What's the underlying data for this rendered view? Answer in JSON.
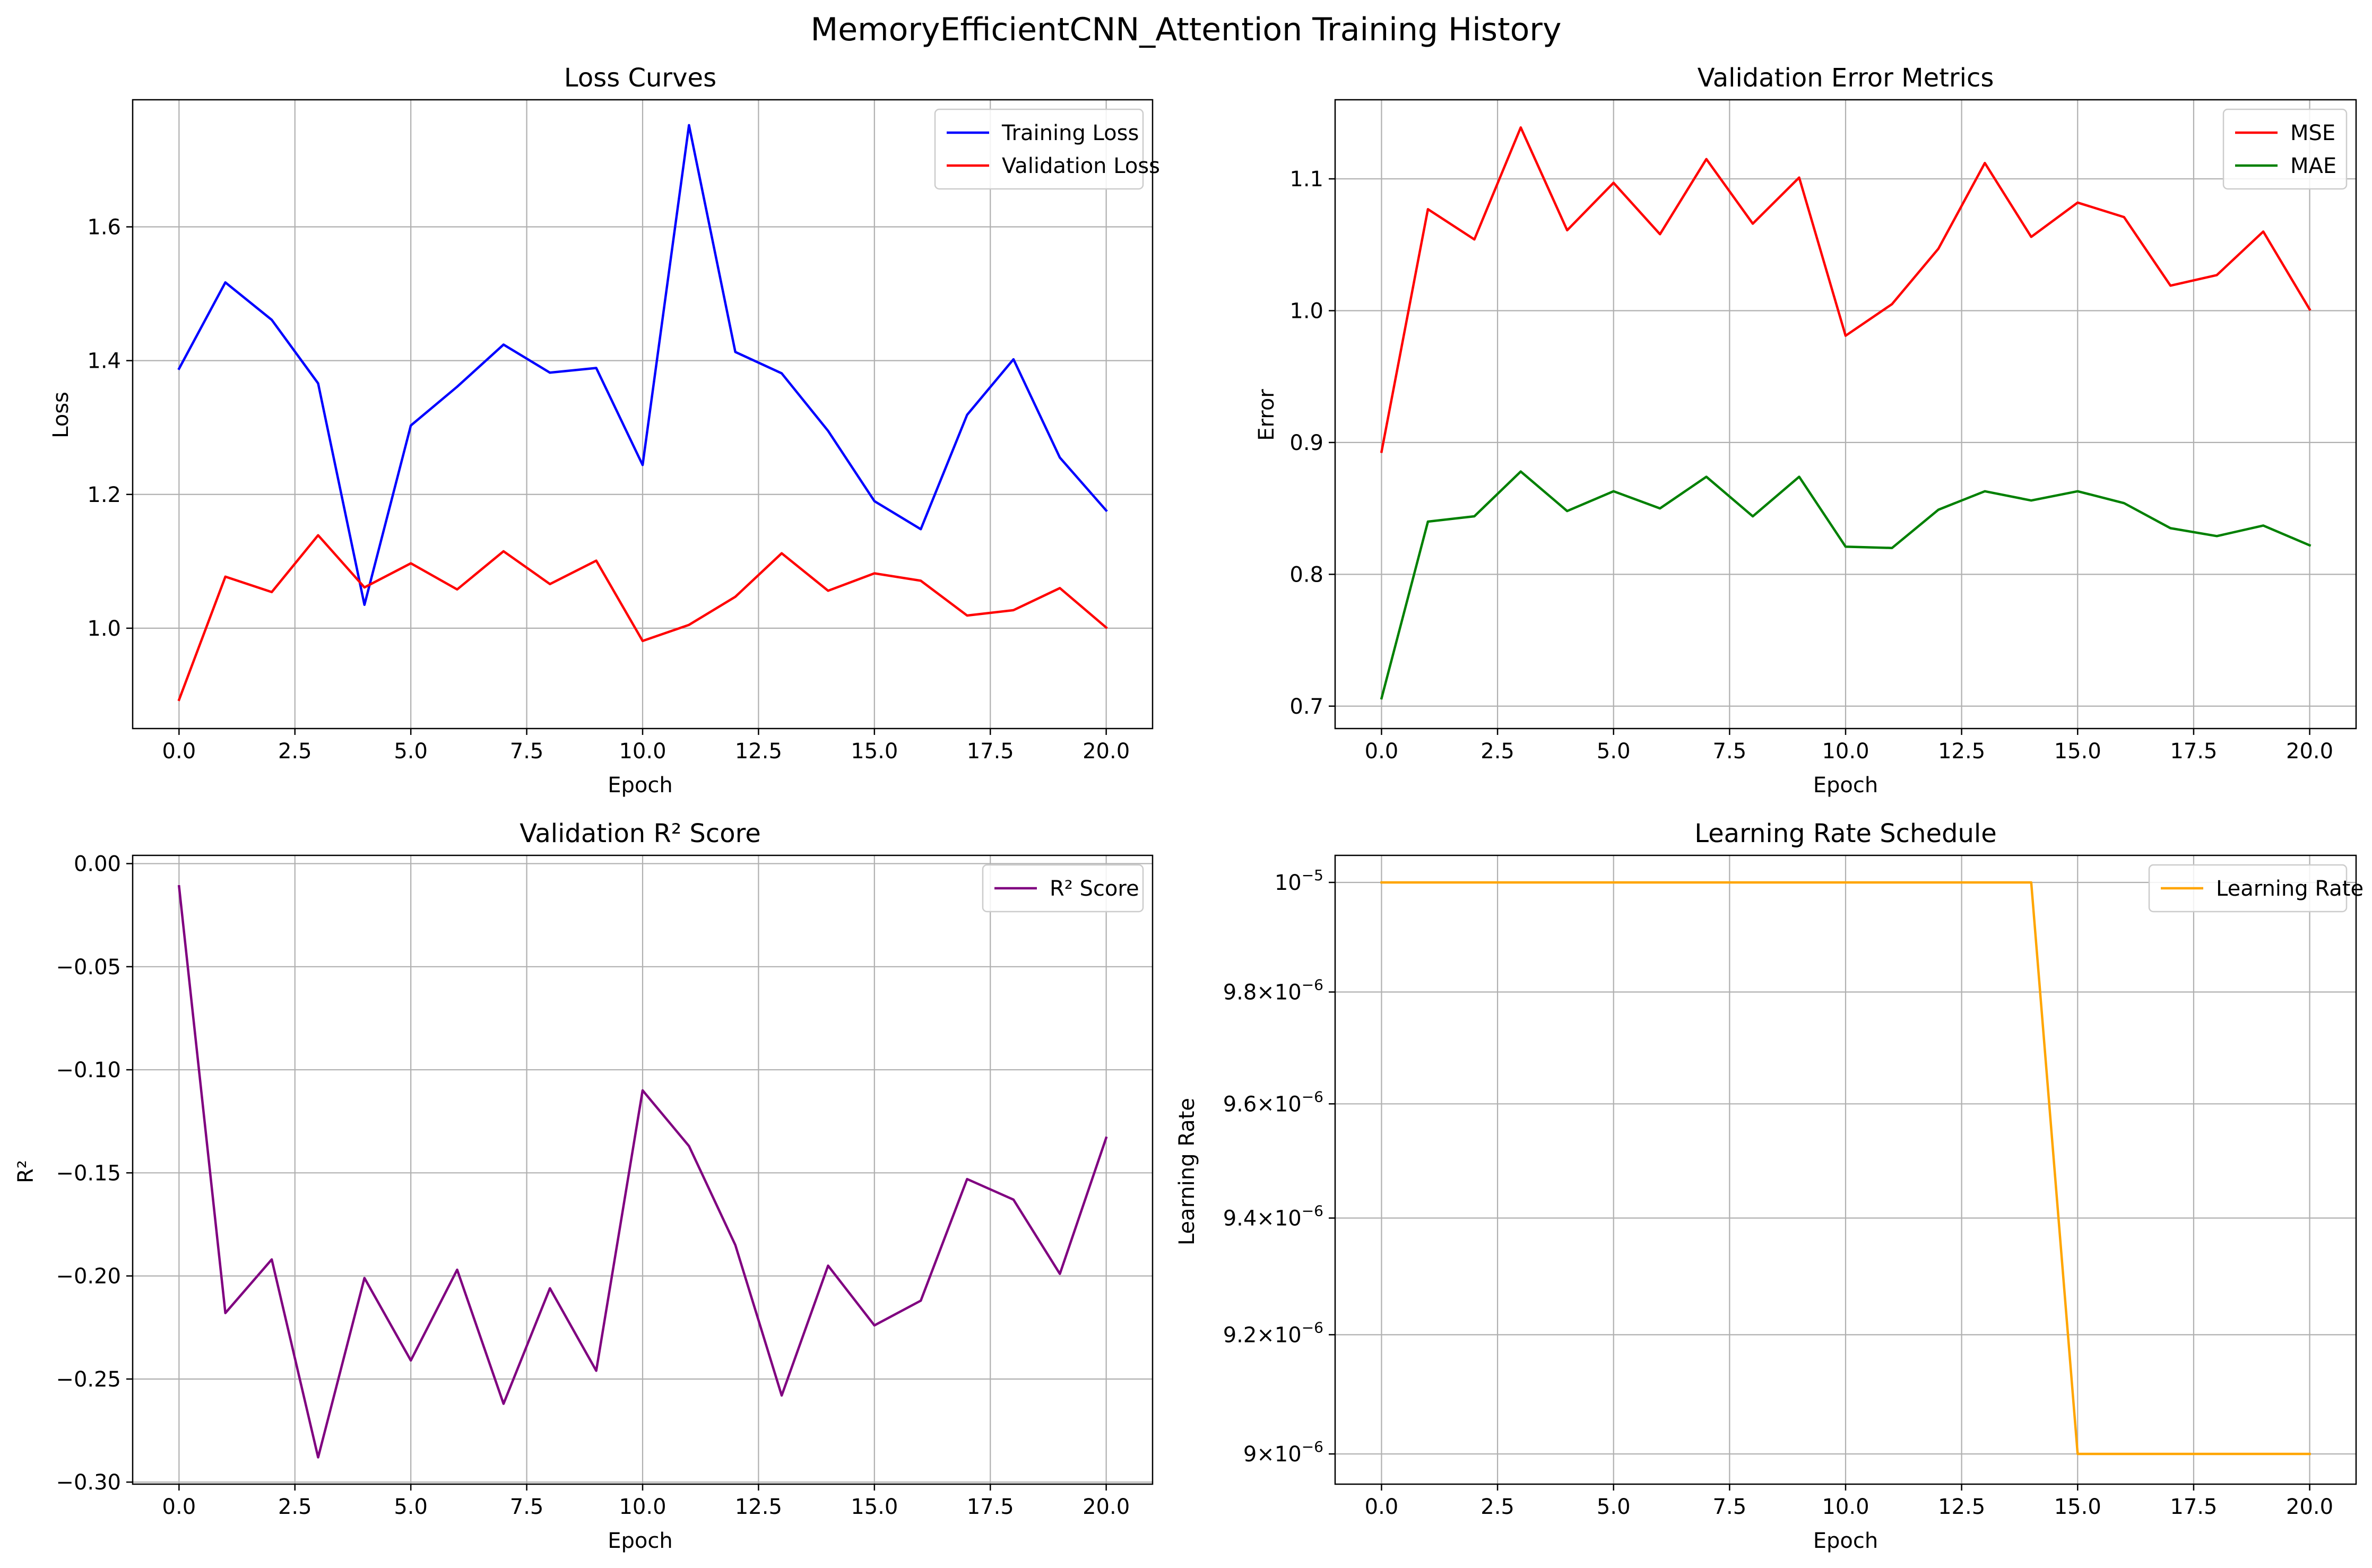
{
  "figure": {
    "title": "MemoryEfficientCNN_Attention Training History"
  },
  "chart_data": [
    {
      "type": "line",
      "title": "Loss Curves",
      "xlabel": "Epoch",
      "ylabel": "Loss",
      "xlim": [
        -1,
        21
      ],
      "ylim": [
        0.85,
        1.79
      ],
      "xticks": [
        0,
        2.5,
        5,
        7.5,
        10,
        12.5,
        15,
        17.5,
        20
      ],
      "xtick_labels": [
        "0.0",
        "2.5",
        "5.0",
        "7.5",
        "10.0",
        "12.5",
        "15.0",
        "17.5",
        "20.0"
      ],
      "yticks": [
        1.0,
        1.2,
        1.4,
        1.6
      ],
      "ytick_labels": [
        "1.0",
        "1.2",
        "1.4",
        "1.6"
      ],
      "grid": true,
      "legend_position": "top-right",
      "x": [
        0,
        1,
        2,
        3,
        4,
        5,
        6,
        7,
        8,
        9,
        10,
        11,
        12,
        13,
        14,
        15,
        16,
        17,
        18,
        19,
        20
      ],
      "series": [
        {
          "name": "Training Loss",
          "color": "#0000ff",
          "values": [
            1.388,
            1.517,
            1.461,
            1.366,
            1.035,
            1.303,
            1.361,
            1.424,
            1.382,
            1.389,
            1.244,
            1.752,
            1.413,
            1.381,
            1.295,
            1.19,
            1.148,
            1.319,
            1.402,
            1.255,
            1.176
          ]
        },
        {
          "name": "Validation Loss",
          "color": "#ff0000",
          "values": [
            0.893,
            1.077,
            1.054,
            1.139,
            1.061,
            1.097,
            1.058,
            1.115,
            1.066,
            1.101,
            0.981,
            1.005,
            1.047,
            1.112,
            1.056,
            1.082,
            1.071,
            1.019,
            1.027,
            1.06,
            1.001
          ]
        }
      ]
    },
    {
      "type": "line",
      "title": "Validation Error Metrics",
      "xlabel": "Epoch",
      "ylabel": "Error",
      "xlim": [
        -1,
        21
      ],
      "ylim": [
        0.683,
        1.16
      ],
      "xticks": [
        0,
        2.5,
        5,
        7.5,
        10,
        12.5,
        15,
        17.5,
        20
      ],
      "xtick_labels": [
        "0.0",
        "2.5",
        "5.0",
        "7.5",
        "10.0",
        "12.5",
        "15.0",
        "17.5",
        "20.0"
      ],
      "yticks": [
        0.7,
        0.8,
        0.9,
        1.0,
        1.1
      ],
      "ytick_labels": [
        "0.7",
        "0.8",
        "0.9",
        "1.0",
        "1.1"
      ],
      "grid": true,
      "legend_position": "top-right",
      "x": [
        0,
        1,
        2,
        3,
        4,
        5,
        6,
        7,
        8,
        9,
        10,
        11,
        12,
        13,
        14,
        15,
        16,
        17,
        18,
        19,
        20
      ],
      "series": [
        {
          "name": "MSE",
          "color": "#ff0000",
          "values": [
            0.893,
            1.077,
            1.054,
            1.139,
            1.061,
            1.097,
            1.058,
            1.115,
            1.066,
            1.101,
            0.981,
            1.005,
            1.047,
            1.112,
            1.056,
            1.082,
            1.071,
            1.019,
            1.027,
            1.06,
            1.001
          ]
        },
        {
          "name": "MAE",
          "color": "#008000",
          "values": [
            0.706,
            0.84,
            0.844,
            0.878,
            0.848,
            0.863,
            0.85,
            0.874,
            0.844,
            0.874,
            0.821,
            0.82,
            0.849,
            0.863,
            0.856,
            0.863,
            0.854,
            0.835,
            0.829,
            0.837,
            0.822
          ]
        }
      ]
    },
    {
      "type": "line",
      "title": "Validation R² Score",
      "xlabel": "Epoch",
      "ylabel": "R²",
      "xlim": [
        -1,
        21
      ],
      "ylim": [
        -0.301,
        0.004
      ],
      "xticks": [
        0,
        2.5,
        5,
        7.5,
        10,
        12.5,
        15,
        17.5,
        20
      ],
      "xtick_labels": [
        "0.0",
        "2.5",
        "5.0",
        "7.5",
        "10.0",
        "12.5",
        "15.0",
        "17.5",
        "20.0"
      ],
      "yticks": [
        0.0,
        -0.05,
        -0.1,
        -0.15,
        -0.2,
        -0.25,
        -0.3
      ],
      "ytick_labels": [
        "0.00",
        "−0.05",
        "−0.10",
        "−0.15",
        "−0.20",
        "−0.25",
        "−0.30"
      ],
      "grid": true,
      "legend_position": "top-right",
      "x": [
        0,
        1,
        2,
        3,
        4,
        5,
        6,
        7,
        8,
        9,
        10,
        11,
        12,
        13,
        14,
        15,
        16,
        17,
        18,
        19,
        20
      ],
      "series": [
        {
          "name": "R² Score",
          "color": "#800080",
          "values": [
            -0.011,
            -0.218,
            -0.192,
            -0.288,
            -0.201,
            -0.241,
            -0.197,
            -0.262,
            -0.206,
            -0.246,
            -0.11,
            -0.137,
            -0.185,
            -0.258,
            -0.195,
            -0.224,
            -0.212,
            -0.153,
            -0.163,
            -0.199,
            -0.133
          ]
        }
      ]
    },
    {
      "type": "line",
      "title": "Learning Rate Schedule",
      "xlabel": "Epoch",
      "ylabel": "Learning Rate",
      "y_scale": "log",
      "xlim": [
        -1,
        21
      ],
      "ylim": [
        8.95e-06,
        1.005e-05
      ],
      "xticks": [
        0,
        2.5,
        5,
        7.5,
        10,
        12.5,
        15,
        17.5,
        20
      ],
      "xtick_labels": [
        "0.0",
        "2.5",
        "5.0",
        "7.5",
        "10.0",
        "12.5",
        "15.0",
        "17.5",
        "20.0"
      ],
      "yticks": [
        1e-05,
        9.8e-06,
        9.6e-06,
        9.4e-06,
        9.2e-06,
        9e-06
      ],
      "ytick_labels": [
        {
          "mant": "",
          "exp": "−5"
        },
        {
          "mant": "9.8",
          "exp": "−6"
        },
        {
          "mant": "9.6",
          "exp": "−6"
        },
        {
          "mant": "9.4",
          "exp": "−6"
        },
        {
          "mant": "9.2",
          "exp": "−6"
        },
        {
          "mant": "9",
          "exp": "−6"
        }
      ],
      "grid": true,
      "legend_position": "top-right",
      "x": [
        0,
        1,
        2,
        3,
        4,
        5,
        6,
        7,
        8,
        9,
        10,
        11,
        12,
        13,
        14,
        15,
        16,
        17,
        18,
        19,
        20
      ],
      "series": [
        {
          "name": "Learning Rate",
          "color": "#ffa500",
          "values": [
            1e-05,
            1e-05,
            1e-05,
            1e-05,
            1e-05,
            1e-05,
            1e-05,
            1e-05,
            1e-05,
            1e-05,
            1e-05,
            1e-05,
            1e-05,
            1e-05,
            1e-05,
            9e-06,
            9e-06,
            9e-06,
            9e-06,
            9e-06,
            9e-06
          ]
        }
      ]
    }
  ]
}
